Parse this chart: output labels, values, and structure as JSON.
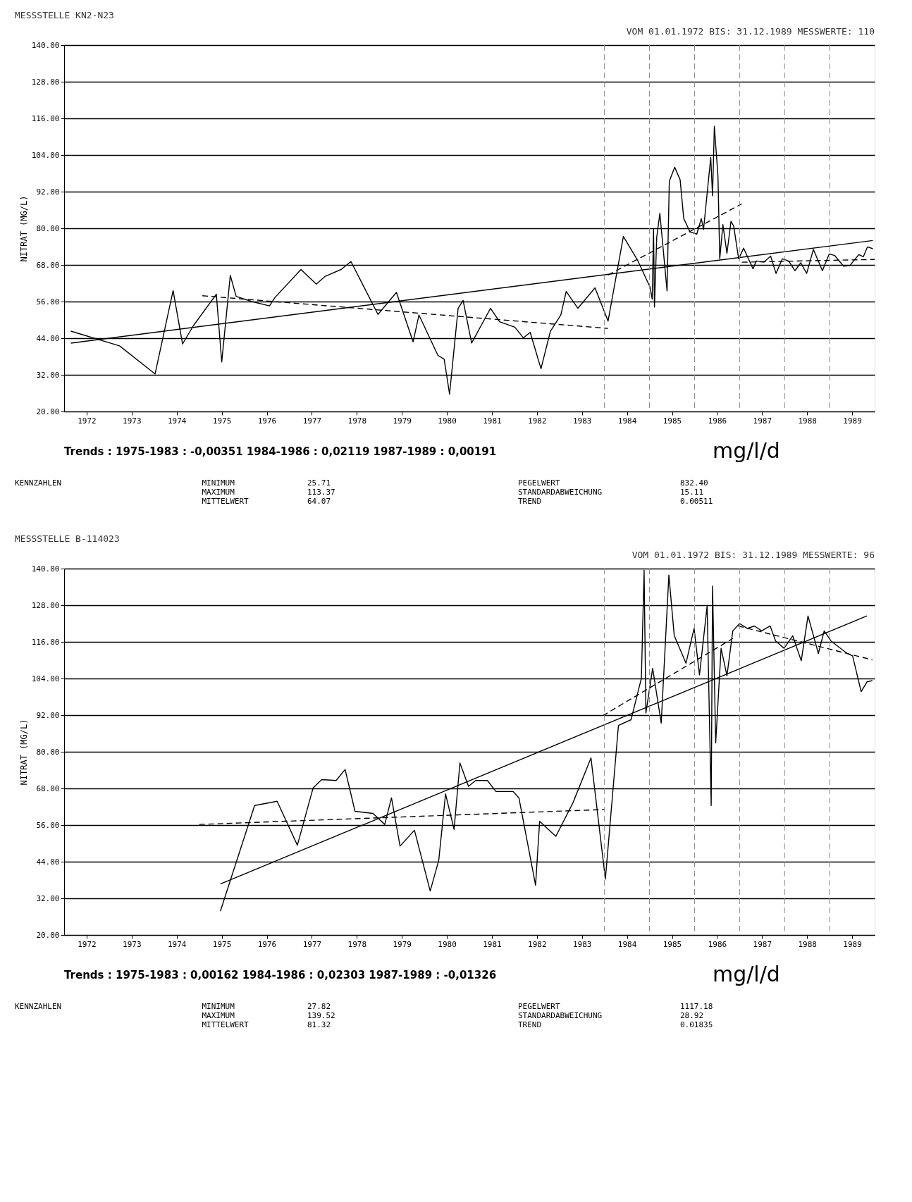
{
  "chart_data": [
    {
      "type": "line",
      "title": "MESSSTELLE   KN2-N23",
      "subtitle": "VOM 01.01.1972 BIS: 31.12.1989     MESSWERTE: 110",
      "ylabel": "NITRAT (MG/L)",
      "xlim": [
        1972,
        1990
      ],
      "ylim": [
        20,
        140
      ],
      "xticks": [
        {
          "value": 1972.5,
          "label": "1972"
        },
        {
          "value": 1973.5,
          "label": "1973"
        },
        {
          "value": 1974.5,
          "label": "1974"
        },
        {
          "value": 1975.5,
          "label": "1975"
        },
        {
          "value": 1976.5,
          "label": "1976"
        },
        {
          "value": 1977.5,
          "label": "1977"
        },
        {
          "value": 1978.5,
          "label": "1978"
        },
        {
          "value": 1979.5,
          "label": "1979"
        },
        {
          "value": 1980.5,
          "label": "1980"
        },
        {
          "value": 1981.5,
          "label": "1981"
        },
        {
          "value": 1982.5,
          "label": "1982"
        },
        {
          "value": 1983.5,
          "label": "1983"
        },
        {
          "value": 1984.5,
          "label": "1984"
        },
        {
          "value": 1985.5,
          "label": "1985"
        },
        {
          "value": 1986.5,
          "label": "1986"
        },
        {
          "value": 1987.5,
          "label": "1987"
        },
        {
          "value": 1988.5,
          "label": "1988"
        },
        {
          "value": 1989.5,
          "label": "1989"
        }
      ],
      "yticks": [
        {
          "value": 20,
          "label": "20.00"
        },
        {
          "value": 32,
          "label": "32.00"
        },
        {
          "value": 44,
          "label": "44.00"
        },
        {
          "value": 56,
          "label": "56.00"
        },
        {
          "value": 68,
          "label": "68.00"
        },
        {
          "value": 80,
          "label": "80.00"
        },
        {
          "value": 92,
          "label": "92.00"
        },
        {
          "value": 104,
          "label": "104.00"
        },
        {
          "value": 116,
          "label": "116.00"
        },
        {
          "value": 128,
          "label": "128.00"
        },
        {
          "value": 140,
          "label": "140.00"
        }
      ],
      "grid": "y",
      "series": [
        {
          "color": "#000000",
          "line_style": "solid",
          "x": [
            1972.15,
            1973.23,
            1974.02,
            1974.42,
            1974.63,
            1974.87,
            1975.38,
            1975.5,
            1975.69,
            1975.82,
            1976.17,
            1976.56,
            1976.68,
            1977.26,
            1977.6,
            1977.8,
            1978.15,
            1978.37,
            1978.97,
            1979.38,
            1979.75,
            1979.88,
            1980.3,
            1980.44,
            1980.56,
            1980.75,
            1980.86,
            1981.05,
            1981.47,
            1981.67,
            1982.01,
            1982.2,
            1982.35,
            1982.59,
            1982.8,
            1983.03,
            1983.15,
            1983.41,
            1983.79,
            1984.08,
            1984.42,
            1984.74,
            1985.01,
            1985.06,
            1985.09,
            1985.11,
            1985.16,
            1985.23,
            1985.39,
            1985.44,
            1985.56,
            1985.68,
            1985.76,
            1985.9,
            1986.05,
            1986.15,
            1986.2,
            1986.36,
            1986.4,
            1986.44,
            1986.52,
            1986.56,
            1986.63,
            1986.72,
            1986.81,
            1986.87,
            1986.98,
            1987.09,
            1987.3,
            1987.37,
            1987.54,
            1987.69,
            1987.81,
            1987.95,
            1988.09,
            1988.23,
            1988.36,
            1988.49,
            1988.64,
            1988.84,
            1988.99,
            1989.11,
            1989.31,
            1989.45,
            1989.65,
            1989.75,
            1989.84,
            1989.96
          ],
          "values": [
            46.3,
            41.5,
            32.3,
            59.6,
            42.1,
            48.1,
            58.4,
            36.2,
            64.6,
            57.7,
            56,
            54.6,
            57.3,
            66.5,
            61.7,
            64.3,
            66.5,
            69.1,
            51.8,
            59,
            42.8,
            51.6,
            38.4,
            37.1,
            25.7,
            53.8,
            56.4,
            42.4,
            53.8,
            49.4,
            47.6,
            44.1,
            45.9,
            34,
            46.3,
            51.6,
            59.3,
            53.8,
            60.5,
            49.6,
            77.3,
            69.4,
            60.8,
            56.8,
            79.8,
            54.2,
            77,
            84.9,
            59.5,
            95.4,
            100,
            95.9,
            83.2,
            78.8,
            78.1,
            83.2,
            79.6,
            103.2,
            90.6,
            113.4,
            97.2,
            70,
            81.2,
            71.8,
            82.3,
            80.7,
            70,
            73.5,
            66.7,
            69.3,
            68.9,
            70.9,
            65.2,
            70,
            69.3,
            66.1,
            68.7,
            65.2,
            73.1,
            66.1,
            71.6,
            71.1,
            67.6,
            67.8,
            71.4,
            70.7,
            73.9,
            73.3
          ]
        },
        {
          "type": "line",
          "color": "#000000",
          "line_style": "solid",
          "x": [
            1972.15,
            1989.96
          ],
          "values": [
            42.4,
            76
          ]
        },
        {
          "type": "line",
          "color": "#000000",
          "line_style": "dashed",
          "x": [
            1975.07,
            1984.08
          ],
          "values": [
            57.9,
            47.2
          ]
        },
        {
          "type": "line",
          "color": "#000000",
          "line_style": "dashed",
          "x": [
            1984.08,
            1987.05
          ],
          "values": [
            64.7,
            88
          ]
        },
        {
          "type": "line",
          "color": "#000000",
          "line_style": "dashed",
          "x": [
            1987.05,
            1990
          ],
          "values": [
            68.9,
            69.8
          ]
        }
      ],
      "ref_lines": [
        {
          "axis": "x",
          "value": 1984,
          "line_style": "dashed",
          "color": "#888888"
        },
        {
          "axis": "x",
          "value": 1985,
          "line_style": "dashed",
          "color": "#888888"
        },
        {
          "axis": "x",
          "value": 1986,
          "line_style": "dashed",
          "color": "#888888"
        },
        {
          "axis": "x",
          "value": 1987,
          "line_style": "dashed",
          "color": "#888888"
        },
        {
          "axis": "x",
          "value": 1988,
          "line_style": "dashed",
          "color": "#888888"
        },
        {
          "axis": "x",
          "value": 1989,
          "line_style": "dashed",
          "color": "#888888"
        }
      ],
      "annotations": [
        "Trends :    1975-1983 : -0,00351   1984-1986 : 0,02119   1987-1989 : 0,00191",
        "mg/l/d",
        "KENNZAHLEN",
        "MINIMUM\nMAXIMUM\nMITTELWERT",
        "25.71\n113.37\n64.07",
        "PEGELWERT\nSTANDARDABWEICHUNG\nTREND",
        "832.40\n15.11\n0.00511"
      ]
    },
    {
      "type": "line",
      "title": "MESSSTELLE   B-114023",
      "subtitle": "VOM 01.01.1972 BIS: 31.12.1989     MESSWERTE: 96",
      "ylabel": "NITRAT (MG/L)",
      "xlim": [
        1972,
        1990
      ],
      "ylim": [
        20,
        140
      ],
      "xticks": [
        {
          "value": 1972.5,
          "label": "1972"
        },
        {
          "value": 1973.5,
          "label": "1973"
        },
        {
          "value": 1974.5,
          "label": "1974"
        },
        {
          "value": 1975.5,
          "label": "1975"
        },
        {
          "value": 1976.5,
          "label": "1976"
        },
        {
          "value": 1977.5,
          "label": "1977"
        },
        {
          "value": 1978.5,
          "label": "1978"
        },
        {
          "value": 1979.5,
          "label": "1979"
        },
        {
          "value": 1980.5,
          "label": "1980"
        },
        {
          "value": 1981.5,
          "label": "1981"
        },
        {
          "value": 1982.5,
          "label": "1982"
        },
        {
          "value": 1983.5,
          "label": "1983"
        },
        {
          "value": 1984.5,
          "label": "1984"
        },
        {
          "value": 1985.5,
          "label": "1985"
        },
        {
          "value": 1986.5,
          "label": "1986"
        },
        {
          "value": 1987.5,
          "label": "1987"
        },
        {
          "value": 1988.5,
          "label": "1988"
        },
        {
          "value": 1989.5,
          "label": "1989"
        }
      ],
      "yticks": [
        {
          "value": 20,
          "label": "20.00"
        },
        {
          "value": 32,
          "label": "32.00"
        },
        {
          "value": 44,
          "label": "44.00"
        },
        {
          "value": 56,
          "label": "56.00"
        },
        {
          "value": 68,
          "label": "68.00"
        },
        {
          "value": 80,
          "label": "80.00"
        },
        {
          "value": 92,
          "label": "92.00"
        },
        {
          "value": 104,
          "label": "104.00"
        },
        {
          "value": 116,
          "label": "116.00"
        },
        {
          "value": 128,
          "label": "128.00"
        },
        {
          "value": 140,
          "label": "140.00"
        }
      ],
      "grid": "y",
      "series": [
        {
          "color": "#000000",
          "line_style": "solid",
          "x": [
            1975.47,
            1976.23,
            1976.73,
            1977.18,
            1977.53,
            1977.72,
            1978.04,
            1978.24,
            1978.46,
            1978.86,
            1979.12,
            1979.27,
            1979.46,
            1979.78,
            1980.13,
            1980.32,
            1980.47,
            1980.66,
            1980.79,
            1980.98,
            1981.14,
            1981.4,
            1981.59,
            1981.97,
            1982.1,
            1982.47,
            1982.56,
            1982.92,
            1983.3,
            1983.7,
            1984.02,
            1984.31,
            1984.59,
            1984.82,
            1984.88,
            1984.92,
            1985.07,
            1985.26,
            1985.43,
            1985.55,
            1985.81,
            1985.99,
            1986.11,
            1986.28,
            1986.37,
            1986.4,
            1986.47,
            1986.59,
            1986.72,
            1986.85,
            1987.0,
            1987.17,
            1987.33,
            1987.49,
            1987.68,
            1987.8,
            1987.99,
            1988.18,
            1988.37,
            1988.52,
            1988.75,
            1988.88,
            1989.03,
            1989.39,
            1989.51,
            1989.7,
            1989.83,
            1989.95
          ],
          "values": [
            27.8,
            62.4,
            63.8,
            49.4,
            68.2,
            70.9,
            70.6,
            74.2,
            60.5,
            59.8,
            56.2,
            64.9,
            49.1,
            54.3,
            34.4,
            44.5,
            66.2,
            54.6,
            76.3,
            68.7,
            70.6,
            70.6,
            67,
            67,
            64.9,
            36.3,
            57.2,
            52.3,
            63.3,
            78,
            38.3,
            88.6,
            90.5,
            104.1,
            139.5,
            92.7,
            107.3,
            89.4,
            137.9,
            118,
            109,
            120.4,
            105.2,
            127.8,
            62.4,
            134.3,
            82.9,
            113.9,
            104.9,
            119.6,
            122,
            120.4,
            121.2,
            119.6,
            121.2,
            116.3,
            113.9,
            118,
            109.8,
            124.5,
            112.2,
            119.6,
            116.3,
            112.2,
            111.4,
            99.7,
            102.9,
            103.3
          ]
        },
        {
          "type": "line",
          "color": "#000000",
          "line_style": "solid",
          "x": [
            1975.47,
            1989.83
          ],
          "values": [
            36.7,
            124.5
          ]
        },
        {
          "type": "line",
          "color": "#000000",
          "line_style": "dashed",
          "x": [
            1975.0,
            1984.0
          ],
          "values": [
            56.2,
            61.1
          ]
        },
        {
          "type": "line",
          "color": "#000000",
          "line_style": "dashed",
          "x": [
            1983.96,
            1986.85
          ],
          "values": [
            91.8,
            117.1
          ]
        },
        {
          "type": "line",
          "color": "#000000",
          "line_style": "dashed",
          "x": [
            1986.97,
            1989.95
          ],
          "values": [
            121.2,
            110.1
          ]
        }
      ],
      "ref_lines": [
        {
          "axis": "x",
          "value": 1984,
          "line_style": "dashed",
          "color": "#888888"
        },
        {
          "axis": "x",
          "value": 1985,
          "line_style": "dashed",
          "color": "#888888"
        },
        {
          "axis": "x",
          "value": 1986,
          "line_style": "dashed",
          "color": "#888888"
        },
        {
          "axis": "x",
          "value": 1987,
          "line_style": "dashed",
          "color": "#888888"
        },
        {
          "axis": "x",
          "value": 1988,
          "line_style": "dashed",
          "color": "#888888"
        },
        {
          "axis": "x",
          "value": 1989,
          "line_style": "dashed",
          "color": "#888888"
        }
      ],
      "annotations": [
        "Trends :    1975-1983 : 0,00162   1984-1986 : 0,02303   1987-1989 : -0,01326",
        "mg/l/d",
        "KENNZAHLEN",
        "MINIMUM\nMAXIMUM\nMITTELWERT",
        "27.82\n139.52\n81.32",
        "PEGELWERT\nSTANDARDABWEICHUNG\nTREND",
        "1117.18\n28.92\n0.01835"
      ]
    }
  ]
}
